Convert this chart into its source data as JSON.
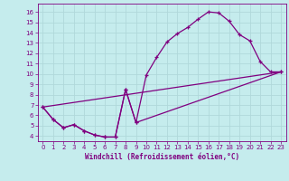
{
  "xlabel": "Windchill (Refroidissement éolien,°C)",
  "bg_color": "#c5eced",
  "line_color": "#800080",
  "grid_color": "#b0d8da",
  "xlim": [
    -0.5,
    23.5
  ],
  "ylim": [
    3.5,
    16.8
  ],
  "xticks": [
    0,
    1,
    2,
    3,
    4,
    5,
    6,
    7,
    8,
    9,
    10,
    11,
    12,
    13,
    14,
    15,
    16,
    17,
    18,
    19,
    20,
    21,
    22,
    23
  ],
  "yticks": [
    4,
    5,
    6,
    7,
    8,
    9,
    10,
    11,
    12,
    13,
    14,
    15,
    16
  ],
  "curve1_x": [
    0,
    1,
    2,
    3,
    4,
    5,
    6,
    7,
    8,
    9,
    10,
    11,
    12,
    13,
    14,
    15,
    16,
    17,
    18,
    19,
    20,
    21,
    22,
    23
  ],
  "curve1_y": [
    6.8,
    5.6,
    4.8,
    5.1,
    4.5,
    4.1,
    3.9,
    3.9,
    8.5,
    5.3,
    9.9,
    11.6,
    13.1,
    13.9,
    14.5,
    15.3,
    16.0,
    15.9,
    15.1,
    13.8,
    13.2,
    11.2,
    10.2,
    10.2
  ],
  "curve2_x": [
    0,
    1,
    2,
    3,
    4,
    5,
    6,
    7,
    8,
    9,
    23
  ],
  "curve2_y": [
    6.8,
    5.6,
    4.8,
    5.1,
    4.5,
    4.1,
    3.9,
    3.9,
    8.5,
    5.3,
    10.2
  ],
  "curve3_x": [
    0,
    23
  ],
  "curve3_y": [
    6.8,
    10.2
  ]
}
